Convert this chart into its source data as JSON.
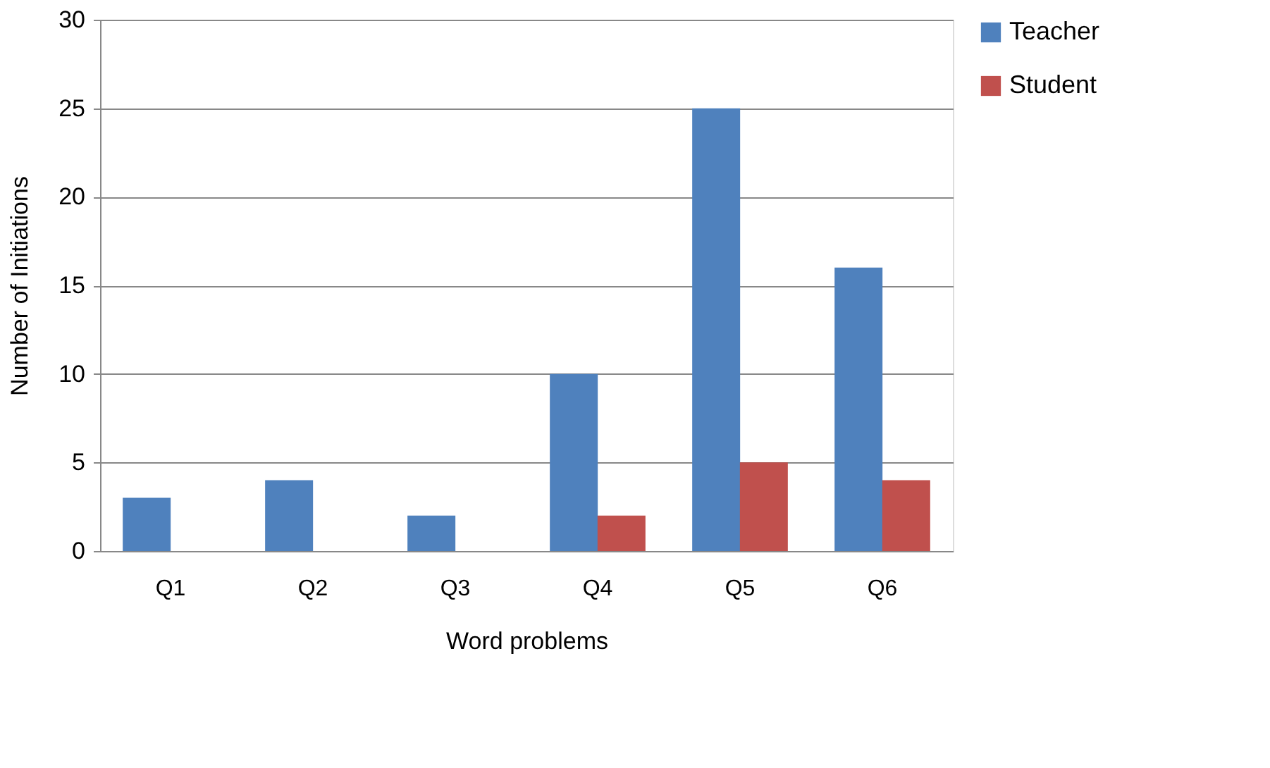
{
  "chart_data": {
    "type": "bar",
    "xlabel": "Word problems",
    "ylabel": "Number of Initiations",
    "categories": [
      "Q1",
      "Q2",
      "Q3",
      "Q4",
      "Q5",
      "Q6"
    ],
    "series": [
      {
        "name": "Teacher",
        "color": "#4f81bd",
        "values": [
          3,
          4,
          2,
          10,
          25,
          16
        ]
      },
      {
        "name": "Student",
        "color": "#c0504d",
        "values": [
          0,
          0,
          0,
          2,
          5,
          4
        ]
      }
    ],
    "ylim": [
      0,
      30
    ],
    "yticks": [
      0,
      5,
      10,
      15,
      20,
      25,
      30
    ],
    "grid": "y",
    "legend": "right"
  }
}
